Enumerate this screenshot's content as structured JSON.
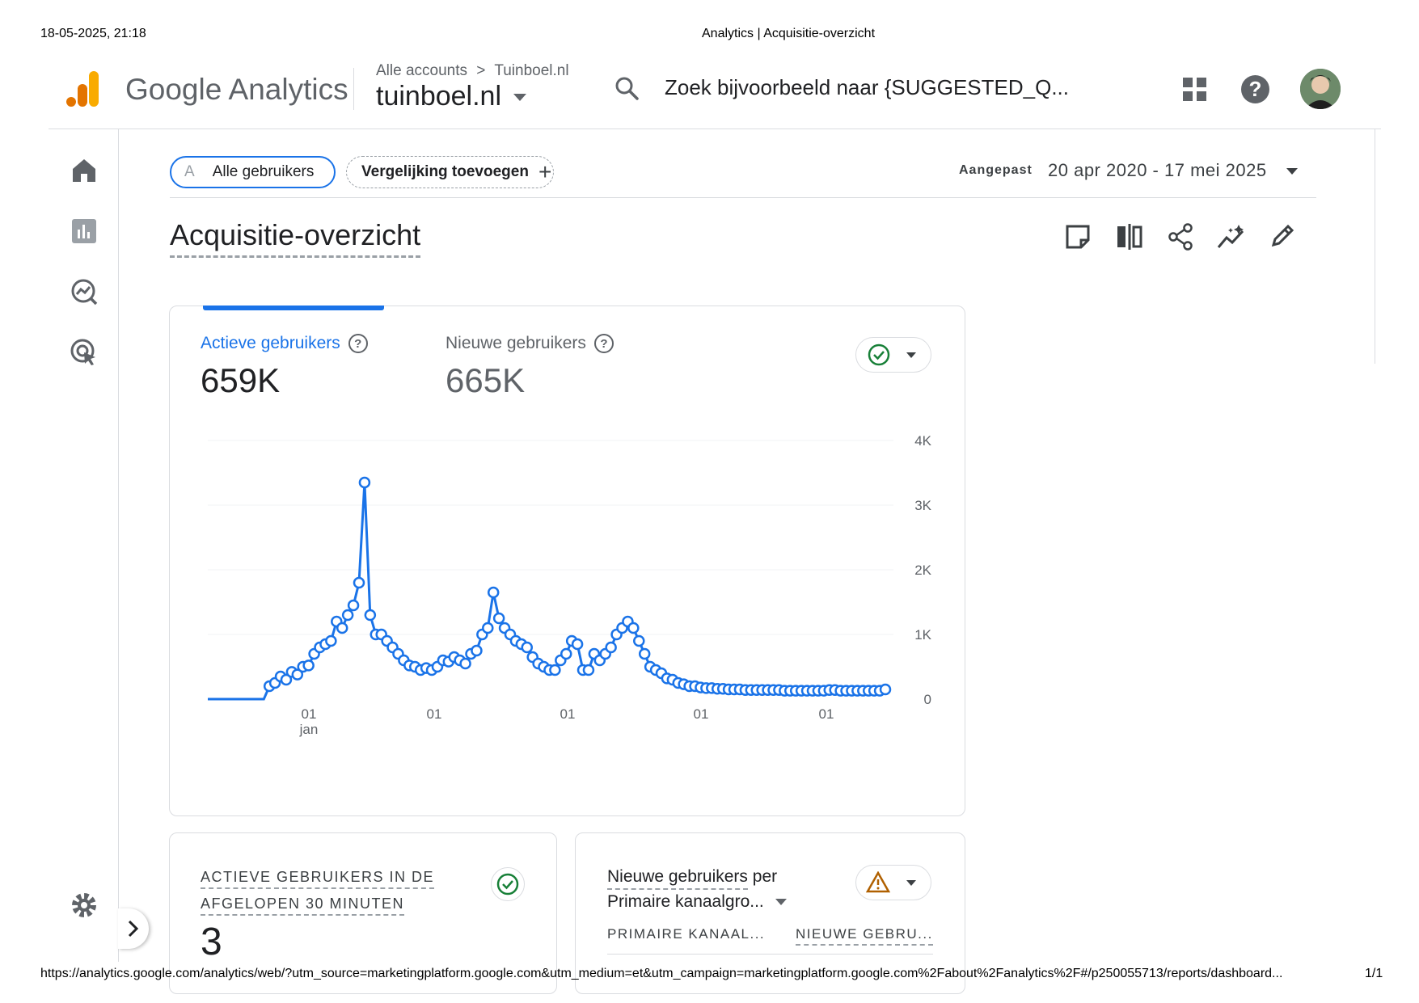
{
  "print_header": {
    "datetime": "18-05-2025, 21:18",
    "doc_title": "Analytics | Acquisitie-overzicht"
  },
  "app": {
    "brand": "Google Analytics"
  },
  "breadcrumb": {
    "accounts": "Alle accounts",
    "separator": ">",
    "account": "Tuinboel.nl"
  },
  "property": {
    "name": "tuinboel.nl"
  },
  "search": {
    "placeholder": "Zoek bijvoorbeeld naar {SUGGESTED_Q..."
  },
  "filters": {
    "segment_letter": "A",
    "segment": "Alle gebruikers",
    "add_comparison": "Vergelijking toevoegen",
    "plus": "+",
    "date_label": "Aangepast",
    "date_range": "20 apr 2020 - 17 mei 2025"
  },
  "page": {
    "title": "Acquisitie-overzicht"
  },
  "main_card": {
    "metric1": {
      "label": "Actieve gebruikers",
      "value": "659K"
    },
    "metric2": {
      "label": "Nieuwe gebruikers",
      "value": "665K"
    },
    "help": "?"
  },
  "chart_data": {
    "type": "line",
    "series": [
      {
        "values": [
          0,
          0,
          0,
          0,
          0,
          0,
          0,
          0,
          0,
          0,
          0,
          200,
          250,
          350,
          300,
          420,
          380,
          500,
          520,
          700,
          800,
          850,
          900,
          1200,
          1100,
          1300,
          1450,
          1800,
          3350,
          1300,
          1000,
          1000,
          900,
          800,
          700,
          600,
          520,
          500,
          450,
          480,
          450,
          500,
          600,
          580,
          650,
          600,
          550,
          700,
          750,
          1000,
          1100,
          1650,
          1250,
          1100,
          1000,
          900,
          850,
          800,
          650,
          550,
          500,
          450,
          450,
          600,
          700,
          900,
          850,
          450,
          450,
          700,
          600,
          700,
          800,
          1000,
          1100,
          1200,
          1100,
          900,
          700,
          500,
          450,
          400,
          320,
          300,
          250,
          230,
          200,
          200,
          180,
          170,
          170,
          160,
          160,
          150,
          150,
          150,
          140,
          140,
          140,
          140,
          140,
          140,
          140,
          130,
          130,
          130,
          130,
          130,
          130,
          130,
          130,
          140,
          140,
          130,
          130,
          130,
          130,
          130,
          130,
          130,
          130,
          150
        ]
      }
    ],
    "x_tick_labels": [
      "01",
      "01",
      "01",
      "01",
      "01"
    ],
    "x_first_sub": "jan",
    "y_ticks": [
      "4K",
      "3K",
      "2K",
      "1K",
      "0"
    ],
    "ylim": [
      0,
      4000
    ],
    "line_color": "#1a73e8",
    "grid": true
  },
  "card_realtime": {
    "title_line1": "ACTIEVE GEBRUIKERS IN DE",
    "title_line2": "AFGELOPEN 30 MINUTEN",
    "value": "3"
  },
  "card_channels": {
    "title_a": "Nieuwe gebruikers",
    "title_b": "per",
    "dimension": "Primaire kanaalgro...",
    "col1": "PRIMAIRE KANAAL...",
    "col2": "NIEUWE GEBRU..."
  },
  "footer": {
    "url": "https://analytics.google.com/analytics/web/?utm_source=marketingplatform.google.com&utm_medium=et&utm_campaign=marketingplatform.google.com%2Fabout%2Fanalytics%2F#/p250055713/reports/dashboard...",
    "page": "1/1"
  },
  "colors": {
    "accent": "#1a73e8",
    "ok": "#188038",
    "warn": "#b06000",
    "logo_orange": "#f9ab00",
    "logo_dark": "#e37400"
  }
}
